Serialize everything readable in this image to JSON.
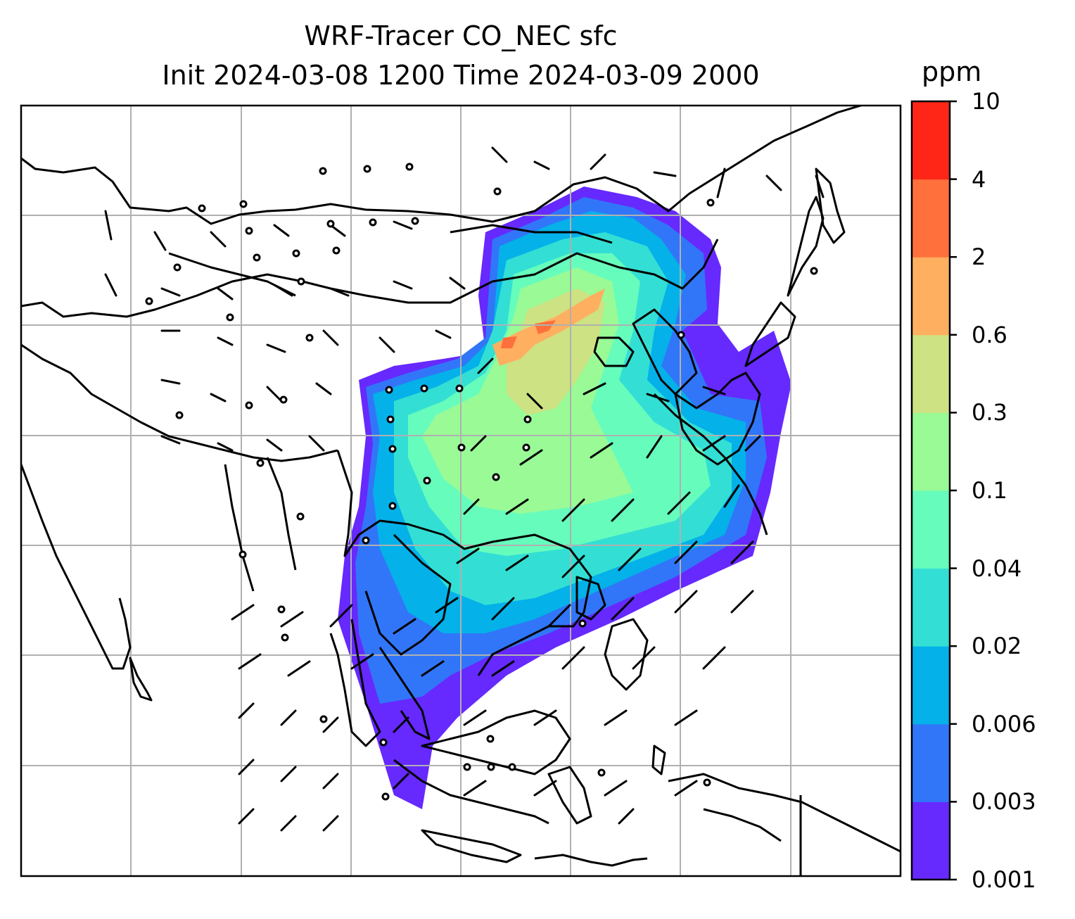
{
  "title": {
    "line1": "WRF-Tracer CO_NEC sfc",
    "line2": "Init 2024-03-08 1200 Time 2024-03-09 2000"
  },
  "colorbar": {
    "unit": "ppm",
    "levels": [
      "0.001",
      "0.003",
      "0.006",
      "0.02",
      "0.04",
      "0.1",
      "0.3",
      "0.6",
      "2",
      "4",
      "10"
    ],
    "colors": [
      "#6629fe",
      "#3176f8",
      "#04b1e9",
      "#33dfd4",
      "#66fcbc",
      "#99fa96",
      "#cde283",
      "#ffaf60",
      "#ff703c",
      "#ff2618"
    ]
  },
  "map": {
    "region": "East and Southeast Asia",
    "gridlines": true,
    "wind_barbs": true
  }
}
